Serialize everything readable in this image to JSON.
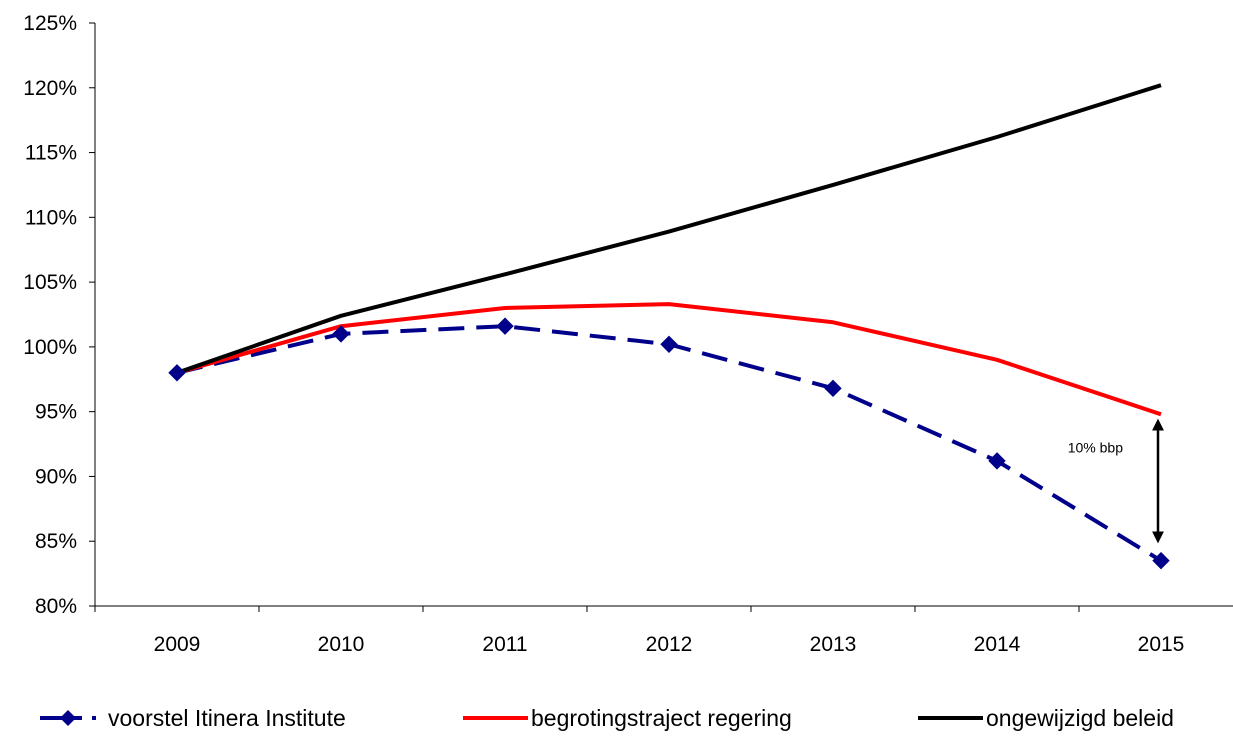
{
  "chart_data": {
    "type": "line",
    "title": "",
    "xlabel": "",
    "ylabel": "",
    "categories": [
      "2009",
      "2010",
      "2011",
      "2012",
      "2013",
      "2014",
      "2015"
    ],
    "ylim": [
      80,
      125
    ],
    "y_ticks": [
      80,
      85,
      90,
      95,
      100,
      105,
      110,
      115,
      120,
      125
    ],
    "y_tick_labels": [
      "80%",
      "85%",
      "90%",
      "95%",
      "100%",
      "105%",
      "110%",
      "115%",
      "120%",
      "125%"
    ],
    "grid": false,
    "legend_position": "bottom",
    "series": [
      {
        "name": "voorstel Itinera Institute",
        "values": [
          98.0,
          101.0,
          101.6,
          100.2,
          96.8,
          91.2,
          83.5
        ],
        "color": "#00008B",
        "style": "dashed",
        "marker": "diamond"
      },
      {
        "name": "begrotingstraject regering",
        "values": [
          98.0,
          101.6,
          103.0,
          103.3,
          101.9,
          99.0,
          94.8
        ],
        "color": "#FF0000",
        "style": "solid",
        "marker": "none"
      },
      {
        "name": "ongewijzigd beleid",
        "values": [
          98.0,
          102.4,
          105.6,
          108.9,
          112.5,
          116.2,
          120.2
        ],
        "color": "#000000",
        "style": "solid",
        "marker": "none"
      }
    ],
    "annotations": [
      {
        "text": "10% bbp",
        "category": "2015",
        "arrow_from": 94.0,
        "arrow_to": 85.3
      }
    ]
  }
}
